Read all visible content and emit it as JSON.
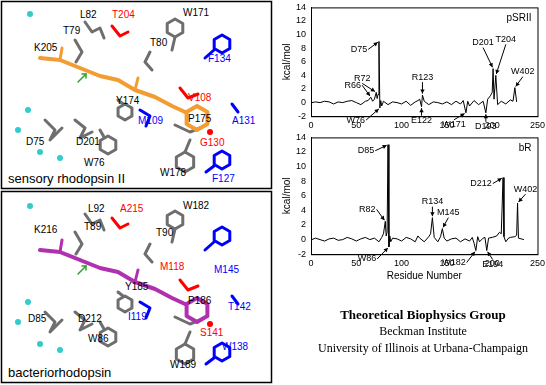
{
  "panels": [
    {
      "title": "sensory rhodopsin II",
      "labels": [
        {
          "text": "L82",
          "color": "#000000"
        },
        {
          "text": "T204",
          "color": "#ff0000"
        },
        {
          "text": "W171",
          "color": "#000000"
        },
        {
          "text": "T79",
          "color": "#000000"
        },
        {
          "text": "T80",
          "color": "#000000"
        },
        {
          "text": "K205",
          "color": "#000000"
        },
        {
          "text": "F134",
          "color": "#0000ff"
        },
        {
          "text": "Y174",
          "color": "#000000"
        },
        {
          "text": "V108",
          "color": "#ff0000"
        },
        {
          "text": "M109",
          "color": "#0000ff"
        },
        {
          "text": "A131",
          "color": "#0000ff"
        },
        {
          "text": "P175",
          "color": "#000000"
        },
        {
          "text": "D75",
          "color": "#000000"
        },
        {
          "text": "D201",
          "color": "#000000"
        },
        {
          "text": "W76",
          "color": "#000000"
        },
        {
          "text": "G130",
          "color": "#ff0000"
        },
        {
          "text": "F127",
          "color": "#0000ff"
        },
        {
          "text": "W178",
          "color": "#000000"
        }
      ]
    },
    {
      "title": "bacteriorhodopsin",
      "labels": [
        {
          "text": "L92",
          "color": "#000000"
        },
        {
          "text": "A215",
          "color": "#ff0000"
        },
        {
          "text": "W182",
          "color": "#000000"
        },
        {
          "text": "T89",
          "color": "#000000"
        },
        {
          "text": "K216",
          "color": "#000000"
        },
        {
          "text": "T90",
          "color": "#000000"
        },
        {
          "text": "M118",
          "color": "#ff0000"
        },
        {
          "text": "M145",
          "color": "#0000ff"
        },
        {
          "text": "Y185",
          "color": "#000000"
        },
        {
          "text": "P186",
          "color": "#000000"
        },
        {
          "text": "T142",
          "color": "#0000ff"
        },
        {
          "text": "I119",
          "color": "#0000ff"
        },
        {
          "text": "D85",
          "color": "#000000"
        },
        {
          "text": "D212",
          "color": "#000000"
        },
        {
          "text": "S141",
          "color": "#ff0000"
        },
        {
          "text": "W86",
          "color": "#000000"
        },
        {
          "text": "W138",
          "color": "#0000ff"
        },
        {
          "text": "W189",
          "color": "#000000"
        }
      ]
    }
  ],
  "chart_data": [
    {
      "type": "line",
      "title": "pSRII",
      "y_label": "kcal/mol",
      "color": "#000000",
      "grid": false,
      "xlim": [
        0,
        250
      ],
      "xticks": [
        0,
        50,
        100,
        150,
        200,
        250
      ],
      "ylim": [
        -2,
        14
      ],
      "yticks": [
        -2,
        0,
        2,
        4,
        6,
        8,
        10,
        12,
        14
      ],
      "x": [
        1,
        5,
        10,
        15,
        20,
        25,
        30,
        35,
        40,
        45,
        50,
        55,
        60,
        63,
        66,
        68,
        70,
        72,
        73,
        74,
        75,
        76,
        77,
        78,
        80,
        85,
        90,
        95,
        100,
        105,
        110,
        115,
        118,
        120,
        122,
        123,
        125,
        130,
        135,
        140,
        145,
        150,
        155,
        160,
        165,
        168,
        171,
        173,
        175,
        180,
        185,
        190,
        193,
        195,
        198,
        200,
        201,
        202,
        204,
        206,
        210,
        215,
        220,
        223,
        225,
        227
      ],
      "values": [
        0,
        0.1,
        0,
        0.2,
        0.1,
        -0.2,
        0.1,
        0,
        0.2,
        0.3,
        0,
        -0.3,
        0.2,
        0.3,
        0.8,
        0.2,
        0.5,
        1.5,
        0.6,
        1.2,
        9,
        -0.8,
        0.3,
        -0.5,
        0.2,
        -0.3,
        0.1,
        0,
        -0.2,
        0.2,
        -0.4,
        0.1,
        0.3,
        0.5,
        -0.6,
        1.1,
        0.2,
        -0.3,
        0.1,
        0,
        -0.2,
        0.1,
        -0.3,
        0.2,
        -0.2,
        0.3,
        -1.5,
        0.2,
        -0.5,
        0.3,
        -0.3,
        0.2,
        -1.5,
        0.5,
        1,
        1.5,
        5,
        0.5,
        4,
        -0.3,
        0.2,
        -0.2,
        0.4,
        0.2,
        2.2,
        0.1
      ],
      "annotations": [
        {
          "text": "D75",
          "x": 75
        },
        {
          "text": "R72",
          "x": 72
        },
        {
          "text": "R66",
          "x": 66
        },
        {
          "text": "R123",
          "x": 123
        },
        {
          "text": "D201",
          "x": 201
        },
        {
          "text": "T204",
          "x": 204
        },
        {
          "text": "W402",
          "x": 225
        },
        {
          "text": "W76",
          "x": 76
        },
        {
          "text": "E122",
          "x": 122
        },
        {
          "text": "W171",
          "x": 171
        },
        {
          "text": "D193",
          "x": 193
        }
      ]
    },
    {
      "type": "line",
      "title": "bR",
      "y_label": "kcal/mol",
      "x_label": "Residue Number",
      "color": "#000000",
      "grid": false,
      "xlim": [
        0,
        250
      ],
      "xticks": [
        0,
        50,
        100,
        150,
        200,
        250
      ],
      "ylim": [
        -2,
        14
      ],
      "yticks": [
        -2,
        0,
        2,
        4,
        6,
        8,
        10,
        12,
        14
      ],
      "x": [
        1,
        5,
        10,
        15,
        20,
        25,
        30,
        35,
        40,
        45,
        50,
        55,
        60,
        65,
        70,
        75,
        78,
        80,
        82,
        83,
        84,
        85,
        86,
        87,
        88,
        90,
        95,
        100,
        105,
        110,
        115,
        118,
        120,
        125,
        130,
        132,
        134,
        136,
        140,
        143,
        145,
        147,
        150,
        155,
        160,
        165,
        170,
        175,
        178,
        180,
        182,
        184,
        186,
        190,
        192,
        194,
        196,
        200,
        205,
        208,
        210,
        212,
        213,
        215,
        218,
        220,
        225,
        227,
        228,
        229,
        232,
        235
      ],
      "values": [
        0,
        0.2,
        0,
        -0.2,
        0.1,
        0.2,
        -0.1,
        0,
        0.3,
        0.1,
        -0.2,
        0.1,
        0.3,
        0,
        0.2,
        -0.3,
        0.3,
        0.8,
        2.5,
        0.5,
        1,
        13,
        -1,
        0.5,
        -0.3,
        0.2,
        0.1,
        -0.2,
        0.3,
        0.1,
        -0.3,
        0.5,
        0.2,
        -0.3,
        0.4,
        0.8,
        3,
        0.3,
        -0.3,
        0.4,
        1.5,
        0.2,
        -0.2,
        0.1,
        0.2,
        -0.3,
        0.1,
        -0.2,
        0.3,
        -0.5,
        -1.5,
        0.4,
        -0.3,
        0.2,
        0.3,
        -1.5,
        0.2,
        0.3,
        0.5,
        1,
        0.8,
        8.5,
        0.4,
        -0.3,
        0.2,
        0.3,
        0.4,
        0.6,
        5,
        0.2,
        0.1,
        0
      ],
      "annotations": [
        {
          "text": "D85",
          "x": 85
        },
        {
          "text": "R82",
          "x": 82
        },
        {
          "text": "R134",
          "x": 134
        },
        {
          "text": "M145",
          "x": 145
        },
        {
          "text": "D212",
          "x": 212
        },
        {
          "text": "W402",
          "x": 228
        },
        {
          "text": "W86",
          "x": 86
        },
        {
          "text": "W182",
          "x": 182
        },
        {
          "text": "E194",
          "x": 194
        }
      ]
    }
  ],
  "credit": {
    "lines": [
      "Theoretical Biophysics Group",
      "Beckman Institute",
      "University of Illinois at Urbana-Champaign"
    ]
  }
}
